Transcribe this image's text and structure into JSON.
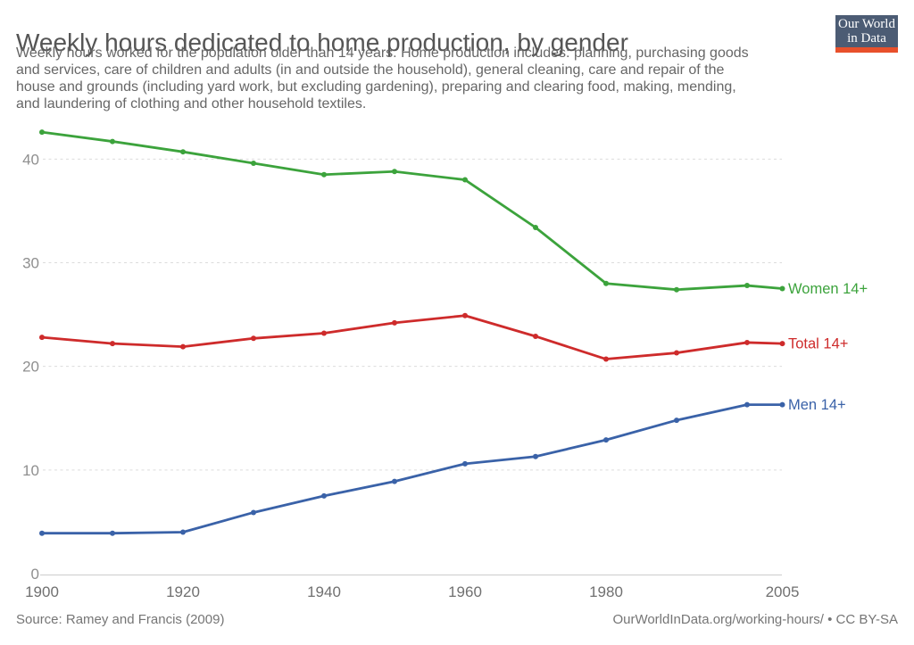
{
  "header": {
    "title": "Weekly hours dedicated to home production, by gender",
    "subtitle": "Weekly hours worked for the population older than 14 years. Home production includes: planning, purchasing goods\nand services, care of children and adults (in and outside the household), general cleaning, care and repair of the\nhouse and grounds (including yard work, but excluding gardening), preparing and clearing food, making, mending,\nand laundering of clothing and other household textiles.",
    "logo": {
      "line1": "Our World",
      "line2": "in Data",
      "bg_color": "#4C5C74",
      "bar_color": "#E8502B"
    }
  },
  "chart_data": {
    "type": "line",
    "title": "Weekly hours dedicated to home production, by gender",
    "xlabel": "",
    "ylabel": "",
    "x": [
      1900,
      1910,
      1920,
      1930,
      1940,
      1950,
      1960,
      1970,
      1980,
      1990,
      2000,
      2005
    ],
    "x_ticks": [
      1900,
      1920,
      1940,
      1960,
      1980,
      2005
    ],
    "y_ticks": [
      0,
      10,
      20,
      30,
      40
    ],
    "ylim": [
      0,
      44
    ],
    "grid": true,
    "legend_position": "right-of-line-end",
    "series": [
      {
        "name": "Women 14+",
        "color": "#3CA33C",
        "values": [
          42.6,
          41.7,
          40.7,
          39.6,
          38.5,
          38.8,
          38.0,
          33.4,
          28.0,
          27.4,
          27.8,
          27.5
        ]
      },
      {
        "name": "Total 14+",
        "color": "#CE2B2B",
        "values": [
          22.8,
          22.2,
          21.9,
          22.7,
          23.2,
          24.2,
          24.9,
          22.9,
          20.7,
          21.3,
          22.3,
          22.2
        ]
      },
      {
        "name": "Men 14+",
        "color": "#3A62A8",
        "values": [
          3.9,
          3.9,
          4.0,
          5.9,
          7.5,
          8.9,
          10.6,
          11.3,
          12.9,
          14.8,
          16.3,
          16.3
        ]
      }
    ]
  },
  "footer": {
    "source": "Source: Ramey and Francis (2009)",
    "attribution": "OurWorldInData.org/working-hours/ • CC BY-SA"
  }
}
